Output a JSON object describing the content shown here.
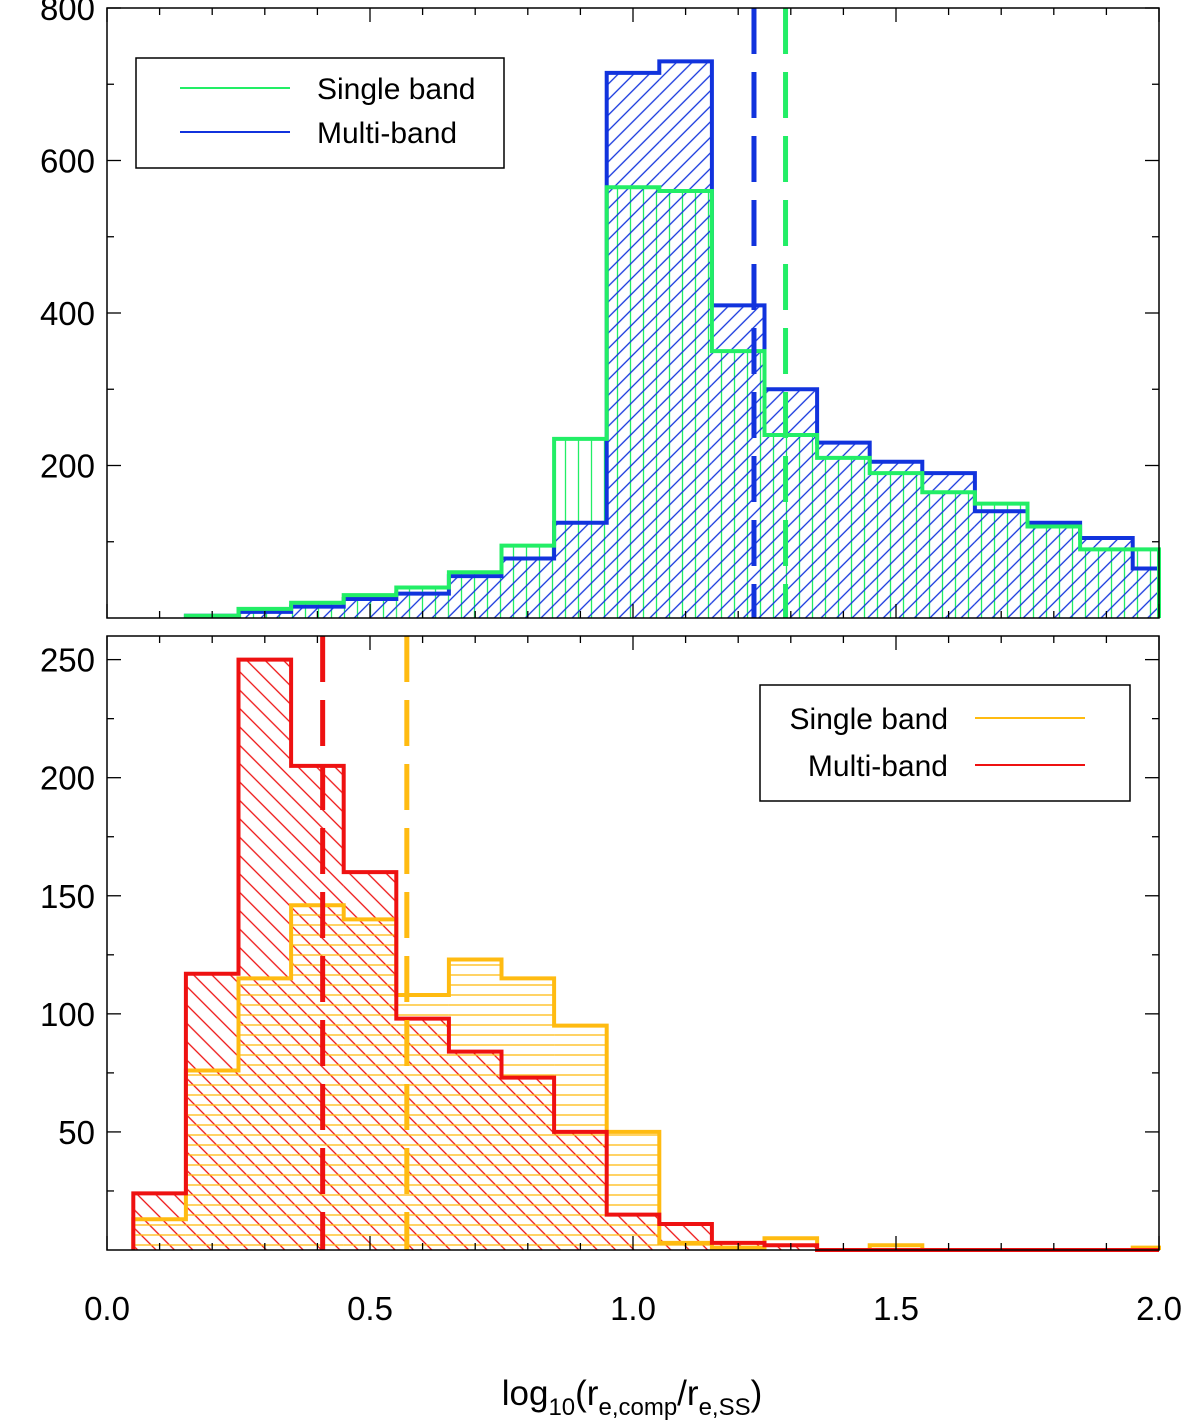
{
  "xlabel": {
    "prefix": "log",
    "log_sub": "10",
    "open": "(r",
    "num_sub": "e,comp",
    "slash": "/r",
    "den_sub": "e,SS",
    "close": ")"
  },
  "chart_data": [
    {
      "type": "histogram",
      "panel": "top",
      "xlim": [
        0.0,
        2.0
      ],
      "ylim": [
        0,
        800
      ],
      "ytick_labels": [
        "200",
        "400",
        "600",
        "800"
      ],
      "bin_edges": [
        0.15,
        0.25,
        0.35,
        0.45,
        0.55,
        0.65,
        0.75,
        0.85,
        0.95,
        1.05,
        1.15,
        1.25,
        1.35,
        1.45,
        1.55,
        1.65,
        1.75,
        1.85,
        1.95,
        2.0
      ],
      "legend": {
        "position": "top-left",
        "entries": [
          "Single band",
          "Multi-band"
        ]
      },
      "series": [
        {
          "name": "Single band",
          "color": "#22ee66",
          "hatch": "vertical",
          "values": [
            3,
            12,
            20,
            30,
            40,
            60,
            95,
            235,
            565,
            560,
            350,
            240,
            210,
            190,
            165,
            150,
            120,
            90,
            90
          ],
          "median": 1.29
        },
        {
          "name": "Multi-band",
          "color": "#1133dd",
          "hatch": "diagonal",
          "values": [
            3,
            8,
            15,
            25,
            32,
            55,
            78,
            125,
            715,
            730,
            410,
            300,
            230,
            205,
            190,
            140,
            125,
            105,
            65
          ],
          "median": 1.23
        }
      ]
    },
    {
      "type": "histogram",
      "panel": "bottom",
      "xlim": [
        0.0,
        2.0
      ],
      "ylim": [
        0,
        260
      ],
      "ytick_labels": [
        "50",
        "100",
        "150",
        "200",
        "250"
      ],
      "xtick_labels": [
        "0.0",
        "0.5",
        "1.0",
        "1.5",
        "2.0"
      ],
      "bin_edges": [
        0.05,
        0.15,
        0.25,
        0.35,
        0.45,
        0.55,
        0.65,
        0.75,
        0.85,
        0.95,
        1.05,
        1.15,
        1.25,
        1.35,
        1.45,
        1.55,
        1.65,
        1.75,
        1.85,
        1.95,
        2.0
      ],
      "legend": {
        "position": "top-right",
        "entries": [
          "Single band",
          "Multi-band"
        ]
      },
      "series": [
        {
          "name": "Single band",
          "color": "#ffbb11",
          "hatch": "horizontal",
          "values": [
            13,
            76,
            115,
            146,
            140,
            108,
            123,
            115,
            95,
            50,
            3,
            1,
            5,
            0,
            2,
            0,
            0,
            0,
            0,
            1
          ],
          "median": 0.57
        },
        {
          "name": "Multi-band",
          "color": "#ee1111",
          "hatch": "diagonal-back",
          "values": [
            24,
            117,
            250,
            205,
            160,
            98,
            84,
            73,
            50,
            15,
            11,
            3,
            2,
            0,
            0,
            0,
            0,
            0,
            0,
            0
          ],
          "median": 0.41
        }
      ]
    }
  ]
}
